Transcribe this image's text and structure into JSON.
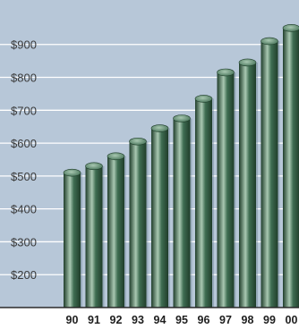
{
  "colors": {
    "plot_background": "#b7c7d8",
    "gridline": "#ffffff",
    "bar": "#3f6d52",
    "bar_dark": "#1f3d2a",
    "bar_light": "#a9c8b2",
    "baseline": "#2b2b2b"
  },
  "chart_data": {
    "type": "bar",
    "title": "",
    "xlabel": "",
    "ylabel": "",
    "categories": [
      "90",
      "91",
      "92",
      "93",
      "94",
      "95",
      "96",
      "97",
      "98",
      "99",
      "00"
    ],
    "values": [
      510,
      530,
      560,
      605,
      645,
      675,
      735,
      815,
      845,
      910,
      950
    ],
    "y_ticks": [
      200,
      300,
      400,
      500,
      600,
      700,
      800,
      900
    ],
    "y_tick_labels": [
      "$200",
      "$300",
      "$400",
      "$500",
      "$600",
      "$700",
      "$800",
      "$900"
    ],
    "ylim": [
      100,
      970
    ],
    "grid": true,
    "legend": "none"
  }
}
